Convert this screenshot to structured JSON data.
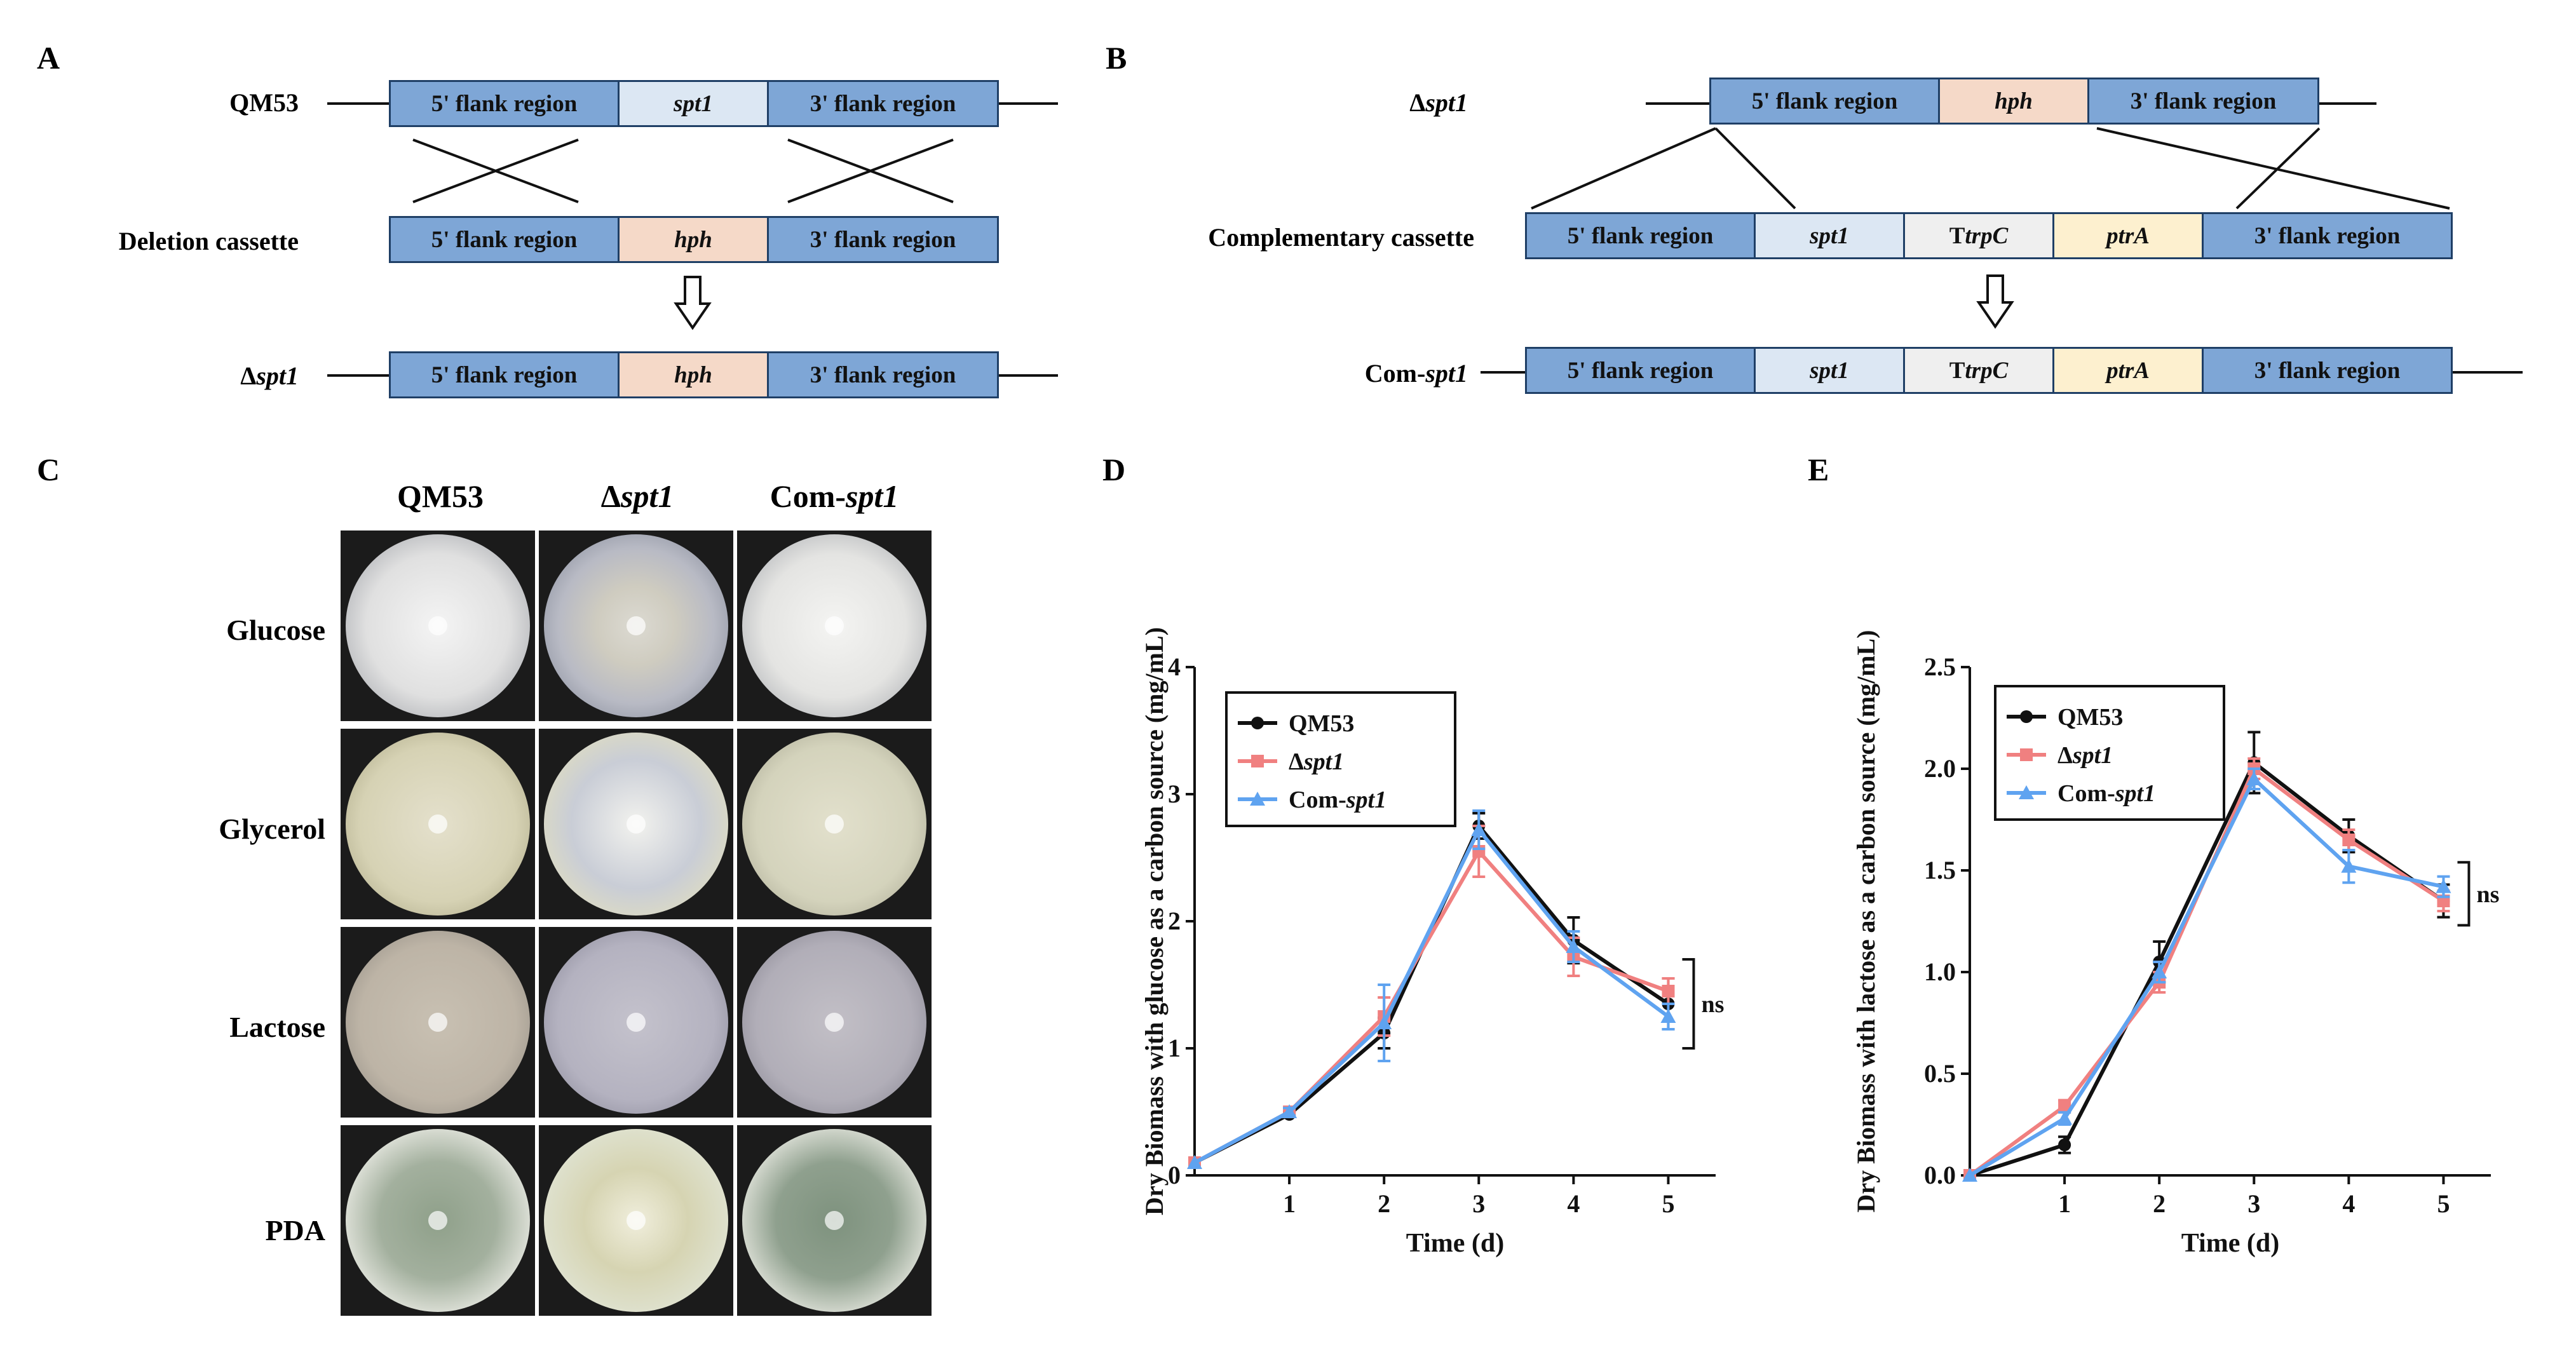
{
  "panels": {
    "A": {
      "letter": "A",
      "rows": [
        {
          "strain": "QM53",
          "segments": [
            "5' flank region",
            "spt1",
            "3' flank region"
          ]
        },
        {
          "strain": "Deletion cassette",
          "segments": [
            "5' flank region",
            "hph",
            "3' flank region"
          ]
        },
        {
          "strain_prefix": "Δ",
          "strain_italic": "spt1",
          "segments": [
            "5' flank region",
            "hph",
            "3' flank region"
          ]
        }
      ]
    },
    "B": {
      "letter": "B",
      "rows": [
        {
          "strain_prefix": "Δ",
          "strain_italic": "spt1",
          "segments": [
            "5' flank region",
            "hph",
            "3' flank region"
          ]
        },
        {
          "strain": "Complementary cassette",
          "segments": [
            "5' flank region",
            "spt1",
            "TtrpC",
            "ptrA",
            "3' flank region"
          ]
        },
        {
          "strain_prefix": "Com-",
          "strain_italic": "spt1",
          "segments": [
            "5' flank region",
            "spt1",
            "TtrpC",
            "ptrA",
            "3' flank region"
          ]
        }
      ],
      "ttrpc_prefix": "T",
      "ttrpc_italic": "trpC"
    },
    "C": {
      "letter": "C",
      "columns": [
        "QM53",
        "Δspt1",
        "Com-spt1"
      ],
      "col_prefix_delta": "Δ",
      "col_italic": "spt1",
      "col_prefix_com": "Com-",
      "rows": [
        "Glucose",
        "Glycerol",
        "Lactose",
        "PDA"
      ]
    },
    "D": {
      "letter": "D"
    },
    "E": {
      "letter": "E"
    }
  },
  "chart_data": [
    {
      "type": "line",
      "panel": "D",
      "xlabel": "Time (d)",
      "ylabel": "Dry Biomass with glucose as a carbon source (mg/mL)",
      "x": [
        0,
        1,
        2,
        3,
        4,
        5
      ],
      "xticks": [
        "1",
        "2",
        "3",
        "4",
        "5"
      ],
      "ylim": [
        0,
        4
      ],
      "yticks": [
        "0",
        "1",
        "2",
        "3",
        "4"
      ],
      "series": [
        {
          "name": "QM53",
          "color": "#111111",
          "marker": "circle",
          "values": [
            0.1,
            0.48,
            1.12,
            2.75,
            1.85,
            1.35
          ],
          "err": [
            0,
            0.02,
            0.12,
            0.1,
            0.18,
            0.2
          ]
        },
        {
          "name": "Δspt1",
          "color": "#f08080",
          "marker": "square",
          "values": [
            0.1,
            0.5,
            1.25,
            2.55,
            1.72,
            1.45
          ],
          "err": [
            0,
            0.03,
            0.15,
            0.2,
            0.15,
            0.1
          ]
        },
        {
          "name": "Com-spt1",
          "color": "#5fa3f0",
          "marker": "triangle",
          "values": [
            0.1,
            0.5,
            1.2,
            2.72,
            1.8,
            1.25
          ],
          "err": [
            0,
            0.03,
            0.3,
            0.15,
            0.12,
            0.1
          ]
        }
      ],
      "legend": [
        "QM53",
        "Δspt1",
        "Com-spt1"
      ],
      "annotation": "ns"
    },
    {
      "type": "line",
      "panel": "E",
      "xlabel": "Time (d)",
      "ylabel": "Dry Biomass with lactose as a carbon source (mg/mL)",
      "x": [
        0,
        1,
        2,
        3,
        4,
        5
      ],
      "xticks": [
        "1",
        "2",
        "3",
        "4",
        "5"
      ],
      "ylim": [
        0,
        2.5
      ],
      "yticks": [
        "0.0",
        "0.5",
        "1.0",
        "1.5",
        "2.0",
        "2.5"
      ],
      "series": [
        {
          "name": "QM53",
          "color": "#111111",
          "marker": "circle",
          "values": [
            0.0,
            0.15,
            1.05,
            2.03,
            1.67,
            1.35
          ],
          "err": [
            0,
            0.04,
            0.1,
            0.15,
            0.08,
            0.08
          ]
        },
        {
          "name": "Δspt1",
          "color": "#f08080",
          "marker": "square",
          "values": [
            0.0,
            0.34,
            0.95,
            2.0,
            1.65,
            1.35
          ],
          "err": [
            0,
            0.03,
            0.05,
            0.05,
            0.05,
            0.05
          ]
        },
        {
          "name": "Com-spt1",
          "color": "#5fa3f0",
          "marker": "triangle",
          "values": [
            0.0,
            0.28,
            1.0,
            1.95,
            1.52,
            1.42
          ],
          "err": [
            0,
            0.03,
            0.05,
            0.05,
            0.08,
            0.05
          ]
        }
      ],
      "legend": [
        "QM53",
        "Δspt1",
        "Com-spt1"
      ],
      "annotation": "ns"
    }
  ]
}
